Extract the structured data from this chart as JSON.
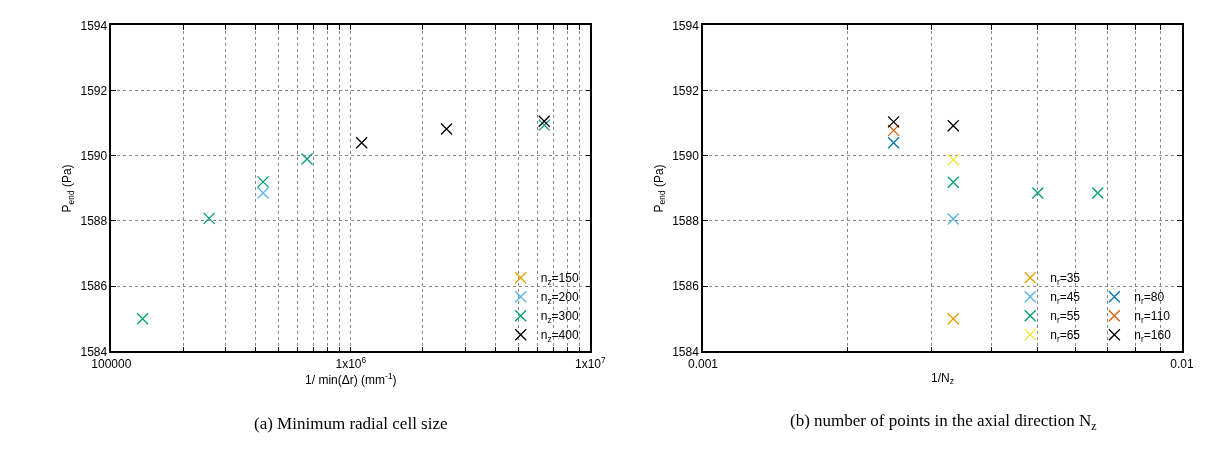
{
  "chart_data": [
    {
      "type": "scatter",
      "xlabel": "1/ min(Δr) (mm$^{-1}$)",
      "ylabel": "P$_{end}$ (Pa)",
      "log": "x",
      "grid": true,
      "legend": "bottom right",
      "marker": "cross",
      "xlim": [
        100000,
        10000000
      ],
      "xticks": [
        100000,
        {
          "value": 200000,
          "label": null
        },
        {
          "value": 300000,
          "label": null
        },
        {
          "value": 400000,
          "label": null
        },
        {
          "value": 500000,
          "label": null
        },
        {
          "value": 600000,
          "label": null
        },
        {
          "value": 700000,
          "label": null
        },
        {
          "value": 800000,
          "label": null
        },
        {
          "value": 900000,
          "label": null
        },
        {
          "value": 1000000,
          "label": "1x10$^{6}$"
        },
        {
          "value": 2000000,
          "label": null
        },
        {
          "value": 3000000,
          "label": null
        },
        {
          "value": 4000000,
          "label": null
        },
        {
          "value": 5000000,
          "label": null
        },
        {
          "value": 6000000,
          "label": null
        },
        {
          "value": 7000000,
          "label": null
        },
        {
          "value": 8000000,
          "label": null
        },
        {
          "value": 9000000,
          "label": null
        },
        {
          "value": 10000000,
          "label": "1x10$^{7}$"
        }
      ],
      "ylim": [
        1584,
        1594
      ],
      "yticks": [
        1584,
        1586,
        1588,
        1590,
        1592,
        1594
      ],
      "annotations": [
        "(a) Minimum radial cell size"
      ],
      "series": [
        {
          "name": "n$_{z}$=150",
          "color": "#e69f00",
          "x": [
            null
          ],
          "values": [
            null
          ]
        },
        {
          "name": "n$_{z}$=200",
          "color": "#56b4e9",
          "x": [
            430000
          ],
          "values": [
            1588.86
          ]
        },
        {
          "name": "n$_{z}$=300",
          "color": "#009e73",
          "x": [
            135000,
            256000,
            430000,
            656000,
            6420000
          ],
          "values": [
            1585.0,
            1588.08,
            1589.2,
            1589.9,
            1590.94
          ]
        },
        {
          "name": "n$_{z}$=400",
          "color": "#000000",
          "x": [
            1110000,
            2510000,
            6420000
          ],
          "values": [
            1590.4,
            1590.82,
            1591.06
          ]
        }
      ]
    },
    {
      "type": "scatter",
      "xlabel": "1/N$_{z}$",
      "ylabel": "P$_{end}$ (Pa)",
      "log": "x",
      "grid": true,
      "legend": "bottom right",
      "marker": "cross",
      "xlim": [
        0.001,
        0.01
      ],
      "xticks": [
        0.001,
        {
          "value": 0.002,
          "label": null
        },
        {
          "value": 0.003,
          "label": null
        },
        {
          "value": 0.004,
          "label": null
        },
        {
          "value": 0.005,
          "label": null
        },
        {
          "value": 0.006,
          "label": null
        },
        {
          "value": 0.007,
          "label": null
        },
        {
          "value": 0.008,
          "label": null
        },
        {
          "value": 0.009,
          "label": null
        },
        0.01
      ],
      "ylim": [
        1584,
        1594
      ],
      "yticks": [
        1584,
        1586,
        1588,
        1590,
        1592,
        1594
      ],
      "annotations": [
        "(b) number of points in the axial direction N$_{z}$"
      ],
      "series": [
        {
          "name": "n$_{r}$=35",
          "color": "#e69f00",
          "x": [
            0.00333
          ],
          "values": [
            1585.0
          ]
        },
        {
          "name": "n$_{r}$=45",
          "color": "#56b4e9",
          "x": [
            0.00333
          ],
          "values": [
            1588.06
          ]
        },
        {
          "name": "n$_{r}$=55",
          "color": "#009e73",
          "x": [
            0.00333,
            0.005,
            0.00667
          ],
          "values": [
            1589.19,
            1588.86,
            1588.86
          ]
        },
        {
          "name": "n$_{r}$=65",
          "color": "#f0e442",
          "x": [
            0.00333
          ],
          "values": [
            1589.88
          ]
        },
        {
          "name": "n$_{r}$=80",
          "color": "#0072b2",
          "x": [
            0.0025
          ],
          "values": [
            1590.4
          ]
        },
        {
          "name": "n$_{r}$=110",
          "color": "#d55e00",
          "x": [
            0.0025
          ],
          "values": [
            1590.78
          ]
        },
        {
          "name": "n$_{r}$=160",
          "color": "#000000",
          "x": [
            0.0025,
            0.00333
          ],
          "values": [
            1591.04,
            1590.92
          ]
        }
      ]
    }
  ]
}
